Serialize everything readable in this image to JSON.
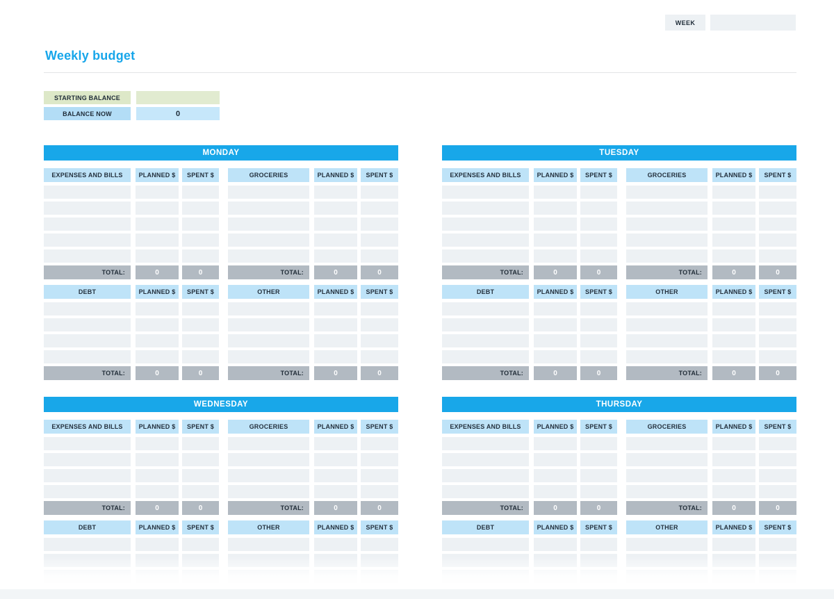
{
  "topbar": {
    "week_label": "WEEK",
    "week_value": ""
  },
  "title": "Weekly budget",
  "balance": {
    "starting_label": "STARTING BALANCE",
    "starting_value": "",
    "now_label": "BALANCE NOW",
    "now_value": "0"
  },
  "labels": {
    "planned": "PLANNED $",
    "spent": "SPENT $",
    "total": "TOTAL:"
  },
  "colors": {
    "accent_blue": "#18a7e9",
    "header_light_blue": "#bee3f8",
    "row_gray": "#edf1f4",
    "total_gray": "#b2bac2",
    "balance_green": "#dde8c8",
    "balance_blue": "#b3ddf6"
  },
  "days": [
    {
      "name": "MONDAY",
      "blocks": [
        {
          "left": "EXPENSES AND BILLS",
          "right": "GROCERIES",
          "rows": 5,
          "total_values": [
            "0",
            "0",
            "0",
            "0"
          ]
        },
        {
          "left": "DEBT",
          "right": "OTHER",
          "rows": 4,
          "total_values": [
            "0",
            "0",
            "0",
            "0"
          ]
        }
      ]
    },
    {
      "name": "TUESDAY",
      "blocks": [
        {
          "left": "EXPENSES AND BILLS",
          "right": "GROCERIES",
          "rows": 5,
          "total_values": [
            "0",
            "0",
            "0",
            "0"
          ]
        },
        {
          "left": "DEBT",
          "right": "OTHER",
          "rows": 4,
          "total_values": [
            "0",
            "0",
            "0",
            "0"
          ]
        }
      ]
    },
    {
      "name": "WEDNESDAY",
      "blocks": [
        {
          "left": "EXPENSES AND BILLS",
          "right": "GROCERIES",
          "rows": 4,
          "total_values": [
            "0",
            "0",
            "0",
            "0"
          ]
        },
        {
          "left": "DEBT",
          "right": "OTHER",
          "rows": 3
        }
      ]
    },
    {
      "name": "THURSDAY",
      "blocks": [
        {
          "left": "EXPENSES AND BILLS",
          "right": "GROCERIES",
          "rows": 4,
          "total_values": [
            "0",
            "0",
            "0",
            "0"
          ]
        },
        {
          "left": "DEBT",
          "right": "OTHER",
          "rows": 3
        }
      ]
    }
  ]
}
